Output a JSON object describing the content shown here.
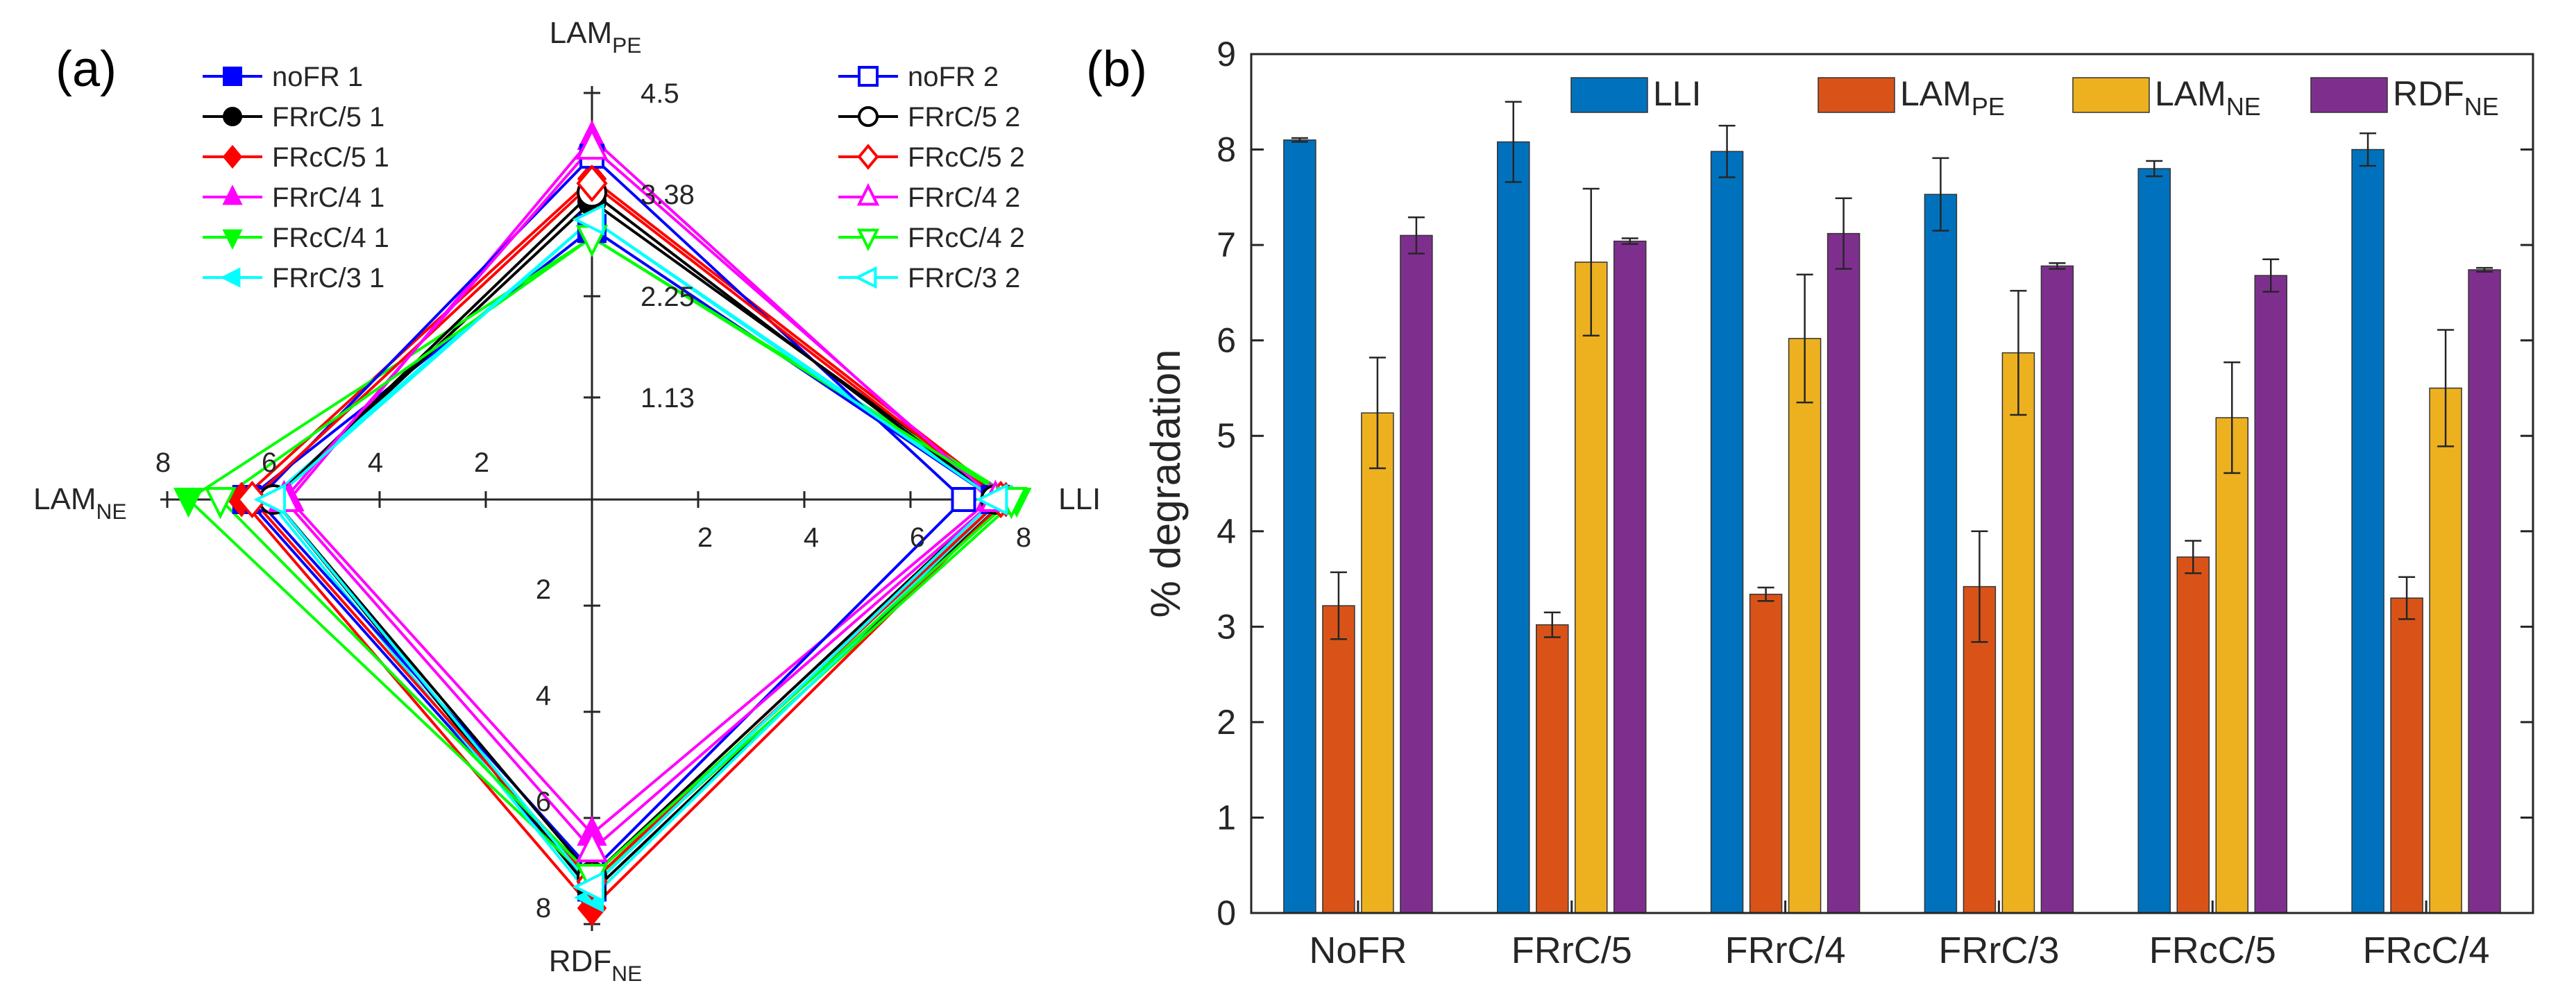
{
  "panels": {
    "a_label": "(a)",
    "b_label": "(b)"
  },
  "chart_data": [
    {
      "type": "radar",
      "axes": {
        "top": {
          "main": "LAM",
          "sub": "PE",
          "ticks": [
            "4.5",
            "3.38",
            "2.25",
            "1.13"
          ],
          "range": [
            0,
            4.5
          ]
        },
        "right": {
          "main": "LLI",
          "sub": "",
          "ticks": [
            "2",
            "4",
            "6",
            "8"
          ],
          "range": [
            0,
            8
          ]
        },
        "bottom": {
          "main": "RDF",
          "sub": "NE",
          "ticks": [
            "2",
            "4",
            "6",
            "8"
          ],
          "range": [
            0,
            8
          ]
        },
        "left": {
          "main": "LAM",
          "sub": "NE",
          "ticks": [
            "2",
            "4",
            "6",
            "8"
          ],
          "range": [
            0,
            8
          ]
        }
      },
      "series": [
        {
          "name": "noFR 1",
          "color": "#0000ff",
          "marker": "square-filled",
          "LLI": 7.6,
          "LAM_PE": 3.0,
          "LAM_NE": 6.5,
          "RDF_NE": 7.3
        },
        {
          "name": "FRrC/5 1",
          "color": "#000000",
          "marker": "circle-filled",
          "LLI": 7.8,
          "LAM_PE": 3.3,
          "LAM_NE": 6.0,
          "RDF_NE": 7.4
        },
        {
          "name": "FRcC/5 1",
          "color": "#ff0000",
          "marker": "diamond-filled",
          "LLI": 7.8,
          "LAM_PE": 3.55,
          "LAM_NE": 6.6,
          "RDF_NE": 7.7
        },
        {
          "name": "FRrC/4 1",
          "color": "#ff00ff",
          "marker": "triangle-up-filled",
          "LLI": 7.5,
          "LAM_PE": 4.0,
          "LAM_NE": 5.7,
          "RDF_NE": 6.3
        },
        {
          "name": "FRcC/4 1",
          "color": "#00ff00",
          "marker": "triangle-down-filled",
          "LLI": 8.0,
          "LAM_PE": 2.9,
          "LAM_NE": 7.6,
          "RDF_NE": 7.2
        },
        {
          "name": "FRrC/3 1",
          "color": "#00ffff",
          "marker": "triangle-left-filled",
          "LLI": 7.7,
          "LAM_PE": 3.1,
          "LAM_NE": 6.1,
          "RDF_NE": 7.5
        },
        {
          "name": "noFR 2",
          "color": "#0000ff",
          "marker": "square-open",
          "LLI": 7.0,
          "LAM_PE": 3.8,
          "LAM_NE": 6.3,
          "RDF_NE": 7.0
        },
        {
          "name": "FRrC/5 2",
          "color": "#000000",
          "marker": "circle-open",
          "LLI": 7.6,
          "LAM_PE": 3.4,
          "LAM_NE": 6.0,
          "RDF_NE": 7.1
        },
        {
          "name": "FRcC/5 2",
          "color": "#ff0000",
          "marker": "diamond-open",
          "LLI": 7.7,
          "LAM_PE": 3.5,
          "LAM_NE": 6.4,
          "RDF_NE": 7.2
        },
        {
          "name": "FRrC/4 2",
          "color": "#ff00ff",
          "marker": "triangle-up-open",
          "LLI": 7.6,
          "LAM_PE": 3.9,
          "LAM_NE": 5.8,
          "RDF_NE": 6.6
        },
        {
          "name": "FRcC/4 2",
          "color": "#00ff00",
          "marker": "triangle-down-open",
          "LLI": 7.9,
          "LAM_PE": 2.9,
          "LAM_NE": 7.0,
          "RDF_NE": 7.1
        },
        {
          "name": "FRrC/3 2",
          "color": "#00ffff",
          "marker": "triangle-left-open",
          "LLI": 7.6,
          "LAM_PE": 3.1,
          "LAM_NE": 6.0,
          "RDF_NE": 7.3
        }
      ]
    },
    {
      "type": "bar",
      "ylabel": "% degradation",
      "ylim": [
        0,
        9
      ],
      "yticks": [
        "0",
        "1",
        "2",
        "3",
        "4",
        "5",
        "6",
        "7",
        "8",
        "9"
      ],
      "categories": [
        "NoFR",
        "FRrC/5",
        "FRrC/4",
        "FRrC/3",
        "FRcC/5",
        "FRcC/4"
      ],
      "series": [
        {
          "name": "LLI",
          "main": "LLI",
          "sub": "",
          "color": "#0072bd",
          "values": [
            8.1,
            8.08,
            7.98,
            7.53,
            7.8,
            8.0
          ],
          "errors": [
            0.02,
            0.42,
            0.27,
            0.38,
            0.08,
            0.17
          ]
        },
        {
          "name": "LAM_PE",
          "main": "LAM",
          "sub": "PE",
          "color": "#d95319",
          "values": [
            3.22,
            3.02,
            3.34,
            3.42,
            3.73,
            3.3
          ],
          "errors": [
            0.35,
            0.13,
            0.07,
            0.58,
            0.17,
            0.22
          ]
        },
        {
          "name": "LAM_NE",
          "main": "LAM",
          "sub": "NE",
          "color": "#edb120",
          "values": [
            5.24,
            6.82,
            6.02,
            5.87,
            5.19,
            5.5
          ],
          "errors": [
            0.58,
            0.77,
            0.67,
            0.65,
            0.58,
            0.61
          ]
        },
        {
          "name": "RDF_NE",
          "main": "RDF",
          "sub": "NE",
          "color": "#7e2f8e",
          "values": [
            7.1,
            7.04,
            7.12,
            6.78,
            6.68,
            6.74
          ],
          "errors": [
            0.19,
            0.03,
            0.37,
            0.03,
            0.17,
            0.02
          ]
        }
      ]
    }
  ]
}
